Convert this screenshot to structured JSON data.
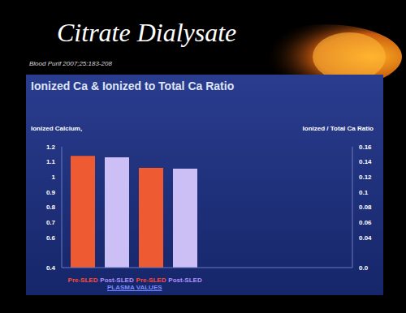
{
  "slide": {
    "title": "Citrate Dialysate",
    "reference": "Blood Purif 2007;25:183-208"
  },
  "chart_data": {
    "type": "bar",
    "title": "Ionized Ca & Ionized to Total Ca Ratio",
    "y_label": "Ionized Calcium,",
    "y2_label": "Ionized / Total Ca Ratio",
    "x_label": "PLASMA VALUES",
    "categories": [
      "Pre-SLED",
      "Post-SLED",
      "Pre-SLED",
      "Post-SLED"
    ],
    "series": [
      {
        "values": [
          1.14,
          1.13,
          null,
          null
        ],
        "colors": [
          "#ee5a32",
          "#cbbff5",
          "#ee5a32",
          "#cbbff5"
        ]
      },
      {
        "axis": "y2",
        "values": [
          null,
          null,
          0.132,
          0.131
        ],
        "colors": [
          "#ee5a32",
          "#cbbff5",
          "#ee5a32",
          "#cbbff5"
        ]
      }
    ],
    "ylim": [
      0.4,
      1.2
    ],
    "yticks": [
      0.4,
      0.6,
      0.7,
      0.8,
      0.9,
      1,
      1.1,
      1.2
    ],
    "y2lim": [
      0,
      0.16
    ],
    "y2ticks": [
      {
        "value": 0,
        "label": "0.0"
      },
      0.04,
      0.06,
      0.08,
      0.1,
      0.12,
      0.14,
      0.16
    ],
    "grid": false
  }
}
